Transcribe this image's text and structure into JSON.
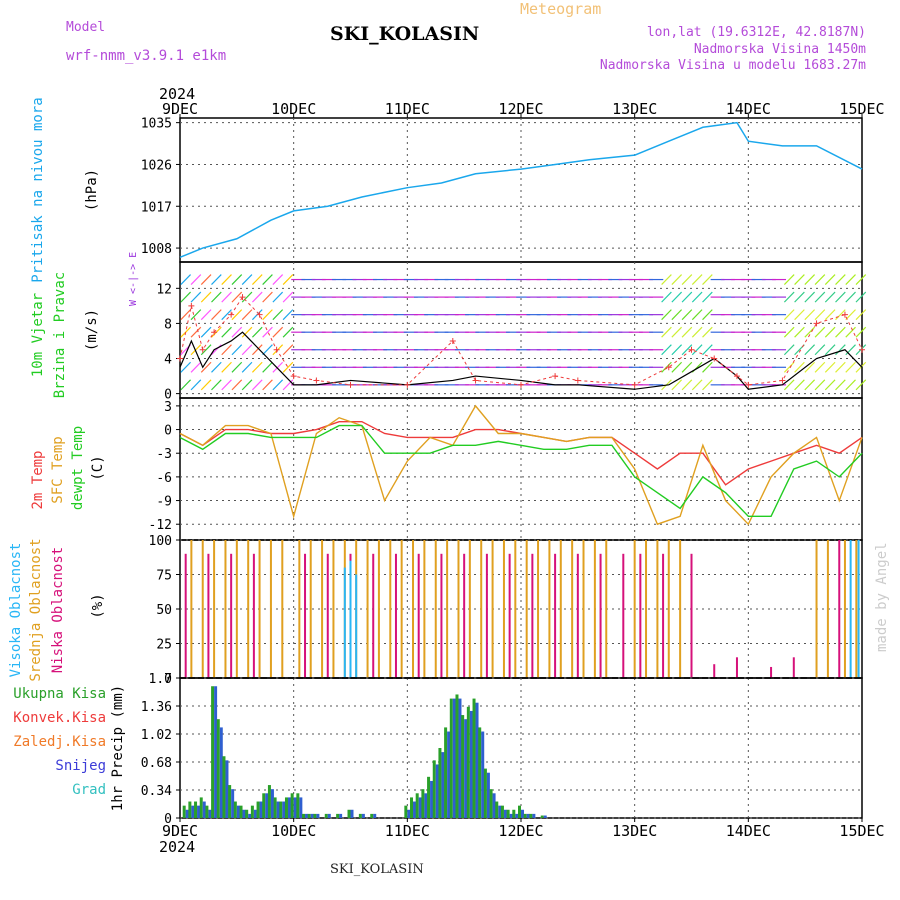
{
  "header": {
    "model_label": "Model",
    "model_name": "wrf-nmm_v3.9.1  e1km",
    "meteogram_label": "Meteogram",
    "station": "SKI_KOLASIN",
    "lonlat": "lon,lat (19.6312E, 42.8187N)",
    "altitude": "Nadmorska Visina 1450m",
    "model_altitude": "Nadmorska Visina u modelu 1683.27m"
  },
  "footer": {
    "station": "SKI_KOLASIN"
  },
  "watermark": "made by Angel",
  "time_axis": {
    "year": "2024",
    "ticks": [
      "9DEC",
      "10DEC",
      "11DEC",
      "12DEC",
      "13DEC",
      "14DEC",
      "15DEC"
    ]
  },
  "colors": {
    "pressure": "#1aa7ec",
    "temp2m": "#ee3b3b",
    "sfc": "#e0a020",
    "dew": "#22cc22",
    "high_cloud": "#29b6f6",
    "mid_cloud": "#e0a020",
    "low_cloud": "#d6117a",
    "precip_total": "#2aa02a",
    "snow": "#2f5fd0",
    "wind_speed": "#000000",
    "gust": "#ee3b3b"
  },
  "panels": {
    "pressure": {
      "label": "Pritisak na nivou mora",
      "unit": "(hPa)"
    },
    "wind": {
      "label1": "10m Vjetar",
      "label2": "Brzina i Pravac",
      "unit": "(m/s)",
      "compass": "W <-|-> E  S<-|->N"
    },
    "temp": {
      "label1": "2m Temp",
      "label2": "SFC Temp",
      "label3": "dewpt Temp",
      "unit": "(C)"
    },
    "cloud": {
      "label1": "Visoka Oblacnost",
      "label2": "Srednja Oblacnost",
      "label3": "Niska Oblacnost",
      "unit": "(%)"
    },
    "precip": {
      "unit": "1hr Precip (mm)",
      "legend": [
        "Ukupna Kisa",
        "Konvek.Kisa",
        "Zaledj.Kisa",
        "Snijeg",
        "Grad"
      ],
      "legend_colors": [
        "#2aa02a",
        "#ee3b3b",
        "#f07a28",
        "#3c3cd8",
        "#33c0c0"
      ]
    }
  },
  "chart_data": [
    {
      "type": "line",
      "title": "Pritisak na nivou mora",
      "ylabel": "(hPa)",
      "ylim": [
        1005,
        1036
      ],
      "yticks": [
        1008,
        1017,
        1026,
        1035
      ],
      "x": [
        0,
        0.2,
        0.5,
        0.8,
        1.0,
        1.3,
        1.6,
        2.0,
        2.3,
        2.6,
        3.0,
        3.3,
        3.6,
        4.0,
        4.3,
        4.6,
        4.9,
        5.0,
        5.3,
        5.6,
        6.0
      ],
      "series": [
        {
          "values": [
            1006,
            1008,
            1010,
            1014,
            1016,
            1017,
            1019,
            1021,
            1022,
            1024,
            1025,
            1026,
            1027,
            1028,
            1031,
            1034,
            1035,
            1031,
            1030,
            1030,
            1025
          ]
        }
      ]
    },
    {
      "type": "line",
      "title": "10m Vjetar Brzina i Pravac",
      "ylabel": "(m/s)",
      "ylim": [
        -0.5,
        15
      ],
      "yticks": [
        0,
        4,
        8,
        12
      ],
      "x": [
        0,
        0.1,
        0.2,
        0.3,
        0.45,
        0.55,
        0.7,
        0.85,
        1.0,
        1.2,
        1.5,
        2.0,
        2.4,
        2.6,
        3.0,
        3.3,
        3.5,
        4.0,
        4.3,
        4.5,
        4.7,
        4.9,
        5.0,
        5.3,
        5.6,
        5.85,
        6.0
      ],
      "series": [
        {
          "values": [
            3,
            6,
            3,
            5,
            6,
            7,
            5,
            3,
            1,
            1,
            1.5,
            1,
            1.5,
            2,
            1.5,
            1,
            1,
            0.5,
            1,
            2.5,
            4,
            2,
            0.5,
            1,
            4,
            5,
            3
          ]
        },
        {
          "values": [
            4,
            10,
            5,
            7,
            9,
            11,
            9,
            5,
            2,
            1.5,
            1,
            1,
            6,
            1.5,
            1,
            2,
            1.5,
            1,
            3,
            5,
            4,
            2,
            1,
            1.5,
            8,
            9,
            5
          ]
        }
      ]
    },
    {
      "type": "line",
      "title": "2m Temp / SFC Temp / dewpt Temp",
      "ylabel": "(C)",
      "ylim": [
        -14,
        4
      ],
      "yticks": [
        3,
        0,
        -3,
        -6,
        -9,
        -12
      ],
      "x": [
        0,
        0.2,
        0.4,
        0.6,
        0.8,
        1.0,
        1.2,
        1.4,
        1.6,
        1.8,
        2.0,
        2.2,
        2.4,
        2.6,
        2.8,
        3.0,
        3.2,
        3.4,
        3.6,
        3.8,
        4.0,
        4.2,
        4.4,
        4.6,
        4.8,
        5.0,
        5.2,
        5.4,
        5.6,
        5.8,
        6.0
      ],
      "series": [
        {
          "name": "2m Temp",
          "values": [
            -0.5,
            -2,
            0,
            0,
            -0.5,
            -0.5,
            0,
            1,
            1,
            -0.5,
            -1,
            -1,
            -1,
            0,
            0,
            -0.5,
            -1,
            -1.5,
            -1,
            -1,
            -3,
            -5,
            -3,
            -3,
            -7,
            -5,
            -4,
            -3,
            -2,
            -3,
            -1
          ]
        },
        {
          "name": "SFC Temp",
          "values": [
            -0.5,
            -2,
            0.5,
            0.5,
            -0.5,
            -11,
            -0.5,
            1.5,
            0.5,
            -9,
            -4,
            -1,
            -2,
            3,
            -0.5,
            -0.5,
            -1,
            -1.5,
            -1,
            -1,
            -5,
            -12,
            -11,
            -2,
            -9,
            -12,
            -6,
            -3,
            -1,
            -9,
            -1
          ]
        },
        {
          "name": "dewpt Temp",
          "values": [
            -1,
            -2.5,
            -0.5,
            -0.5,
            -1,
            -1,
            -1,
            0.5,
            0.5,
            -3,
            -3,
            -3,
            -2,
            -2,
            -1.5,
            -2,
            -2.5,
            -2.5,
            -2,
            -2,
            -6,
            -8,
            -10,
            -6,
            -8,
            -11,
            -11,
            -5,
            -4,
            -6,
            -3
          ]
        }
      ]
    },
    {
      "type": "bar",
      "title": "Visoka / Srednja / Niska Oblacnost",
      "ylabel": "(%)",
      "ylim": [
        0,
        100
      ],
      "yticks": [
        0,
        25,
        50,
        75,
        100
      ],
      "series": [
        {
          "name": "Srednja Oblacnost",
          "x": [
            0.1,
            0.2,
            0.3,
            0.4,
            0.5,
            0.6,
            0.7,
            0.8,
            0.9,
            1.05,
            1.15,
            1.25,
            1.35,
            1.45,
            1.55,
            1.65,
            1.75,
            1.85,
            1.95,
            2.05,
            2.15,
            2.25,
            2.35,
            2.45,
            2.55,
            2.65,
            2.75,
            2.85,
            2.95,
            3.05,
            3.15,
            3.25,
            3.35,
            3.45,
            3.55,
            3.65,
            3.75,
            4.0,
            4.1,
            4.2,
            4.3,
            4.4,
            5.6,
            5.7,
            5.85,
            5.95
          ],
          "values": [
            100,
            100,
            100,
            100,
            100,
            100,
            100,
            100,
            100,
            100,
            100,
            100,
            100,
            100,
            100,
            100,
            100,
            100,
            100,
            100,
            100,
            100,
            100,
            100,
            100,
            100,
            100,
            100,
            100,
            100,
            100,
            100,
            100,
            100,
            100,
            100,
            100,
            100,
            100,
            100,
            100,
            100,
            100,
            100,
            100,
            100
          ]
        },
        {
          "name": "Niska Oblacnost",
          "x": [
            0.05,
            0.25,
            0.45,
            0.65,
            1.1,
            1.3,
            1.5,
            1.7,
            1.9,
            2.1,
            2.3,
            2.5,
            2.7,
            2.9,
            3.1,
            3.3,
            3.5,
            3.7,
            3.9,
            4.05,
            4.25,
            4.5,
            4.7,
            4.9,
            5.2,
            5.4,
            5.8
          ],
          "values": [
            90,
            90,
            90,
            90,
            90,
            90,
            90,
            90,
            90,
            90,
            90,
            90,
            90,
            90,
            90,
            90,
            90,
            90,
            90,
            90,
            90,
            90,
            10,
            15,
            8,
            15,
            100
          ]
        },
        {
          "name": "Visoka Oblacnost",
          "x": [
            1.45,
            1.5,
            1.55,
            5.9,
            5.97
          ],
          "values": [
            80,
            85,
            75,
            100,
            100
          ]
        }
      ]
    },
    {
      "type": "bar",
      "title": "1hr Precip",
      "ylabel": "1hr Precip (mm)",
      "ylim": [
        0,
        1.7
      ],
      "yticks": [
        0,
        0.34,
        0.68,
        1.02,
        1.36,
        1.7
      ],
      "x": [
        0.05,
        0.1,
        0.15,
        0.2,
        0.25,
        0.3,
        0.35,
        0.4,
        0.45,
        0.5,
        0.55,
        0.6,
        0.65,
        0.7,
        0.75,
        0.8,
        0.85,
        0.9,
        0.95,
        1.0,
        1.05,
        1.1,
        1.15,
        1.2,
        1.3,
        1.4,
        1.5,
        1.6,
        1.7,
        2.0,
        2.05,
        2.1,
        2.15,
        2.2,
        2.25,
        2.3,
        2.35,
        2.4,
        2.45,
        2.5,
        2.55,
        2.6,
        2.65,
        2.7,
        2.75,
        2.8,
        2.85,
        2.9,
        2.95,
        3.0,
        3.05,
        3.1,
        3.2
      ],
      "series": [
        {
          "name": "Ukupna Kisa",
          "values": [
            0.15,
            0.2,
            0.2,
            0.25,
            0.15,
            1.6,
            1.2,
            0.75,
            0.4,
            0.2,
            0.15,
            0.1,
            0.15,
            0.2,
            0.3,
            0.4,
            0.25,
            0.2,
            0.25,
            0.3,
            0.3,
            0.05,
            0.05,
            0.05,
            0.05,
            0.05,
            0.1,
            0.05,
            0.05,
            0.15,
            0.25,
            0.3,
            0.35,
            0.5,
            0.7,
            0.85,
            1.1,
            1.45,
            1.5,
            1.25,
            1.35,
            1.45,
            1.1,
            0.6,
            0.35,
            0.2,
            0.15,
            0.1,
            0.1,
            0.15,
            0.05,
            0.05,
            0.03
          ]
        },
        {
          "name": "Snijeg",
          "values": [
            0.1,
            0.15,
            0.15,
            0.2,
            0.1,
            1.6,
            1.1,
            0.7,
            0.35,
            0.15,
            0.1,
            0.05,
            0.1,
            0.2,
            0.3,
            0.35,
            0.2,
            0.2,
            0.25,
            0.25,
            0.25,
            0.05,
            0.05,
            0.05,
            0.05,
            0.05,
            0.1,
            0.05,
            0.05,
            0.1,
            0.2,
            0.25,
            0.3,
            0.45,
            0.65,
            0.8,
            1.05,
            1.45,
            1.45,
            1.2,
            1.3,
            1.4,
            1.05,
            0.55,
            0.3,
            0.15,
            0.1,
            0.05,
            0.05,
            0.1,
            0.05,
            0.05,
            0.03
          ]
        }
      ]
    }
  ]
}
